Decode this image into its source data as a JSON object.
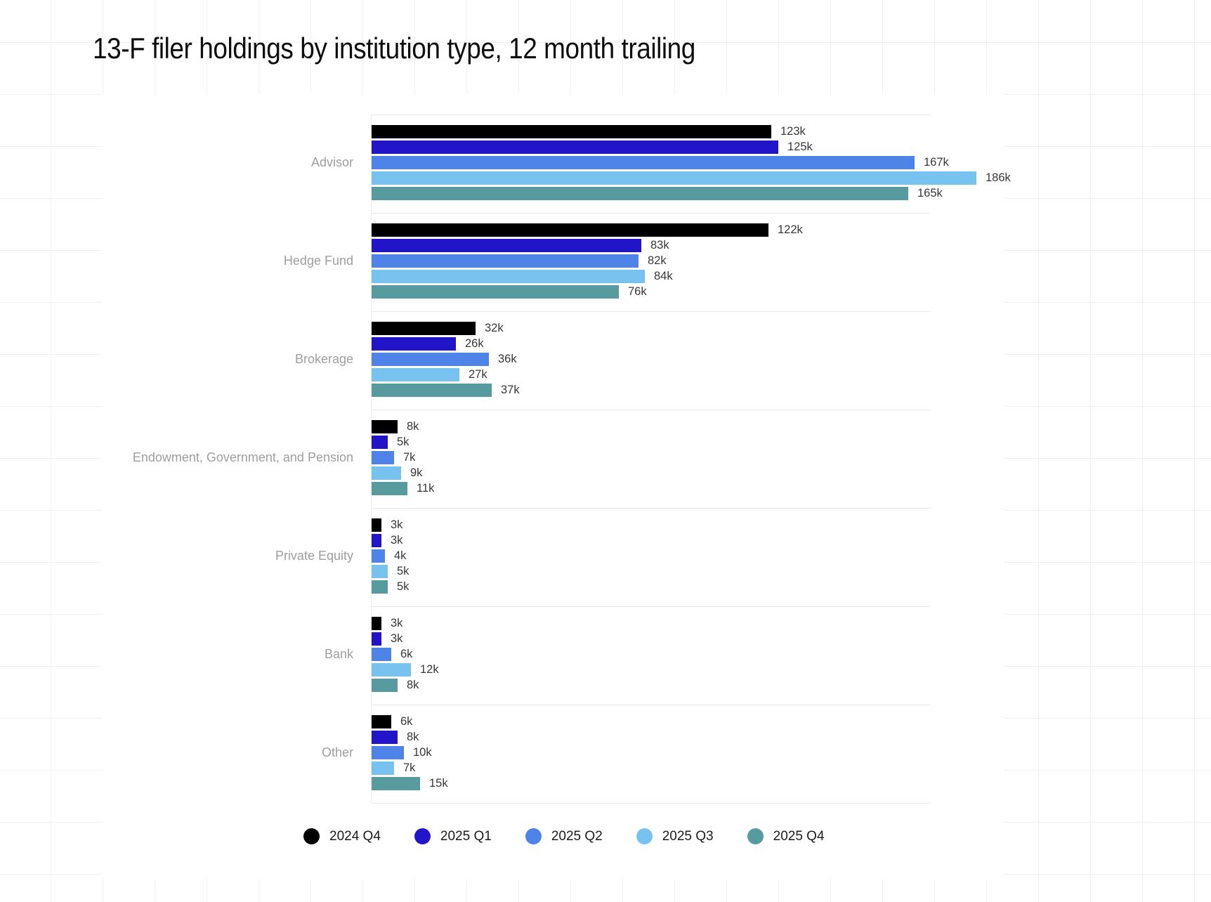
{
  "title": "13-F filer holdings by institution type, 12 month trailing",
  "chart_data": {
    "type": "bar",
    "orientation": "horizontal",
    "title": "13-F filer holdings by institution type, 12 month trailing",
    "unit": "k",
    "xlim": [
      0,
      186
    ],
    "grid": "off",
    "legend_position": "bottom",
    "categories": [
      "Advisor",
      "Hedge Fund",
      "Brokerage",
      "Endowment, Government, and Pension",
      "Private Equity",
      "Bank",
      "Other"
    ],
    "series": [
      {
        "name": "2024 Q4",
        "color": "#000000",
        "values": [
          123,
          122,
          32,
          8,
          3,
          3,
          6
        ],
        "labels": [
          "123k",
          "122k",
          "32k",
          "8k",
          "3k",
          "3k",
          "6k"
        ]
      },
      {
        "name": "2025 Q1",
        "color": "#2214c9",
        "values": [
          125,
          83,
          26,
          5,
          3,
          3,
          8
        ],
        "labels": [
          "125k",
          "83k",
          "26k",
          "5k",
          "3k",
          "3k",
          "8k"
        ]
      },
      {
        "name": "2025 Q2",
        "color": "#4e83e8",
        "values": [
          167,
          82,
          36,
          7,
          4,
          6,
          10
        ],
        "labels": [
          "167k",
          "82k",
          "36k",
          "7k",
          "4k",
          "6k",
          "10k"
        ]
      },
      {
        "name": "2025 Q3",
        "color": "#77c2ef",
        "values": [
          186,
          84,
          27,
          9,
          5,
          12,
          7
        ],
        "labels": [
          "186k",
          "84k",
          "27k",
          "9k",
          "5k",
          "12k",
          "7k"
        ]
      },
      {
        "name": "2025 Q4",
        "color": "#579b9e",
        "values": [
          165,
          76,
          37,
          11,
          5,
          8,
          15
        ],
        "labels": [
          "165k",
          "76k",
          "37k",
          "11k",
          "5k",
          "8k",
          "15k"
        ]
      }
    ]
  },
  "legend": {
    "items": [
      "2024 Q4",
      "2025 Q1",
      "2025 Q2",
      "2025 Q3",
      "2025 Q4"
    ]
  }
}
